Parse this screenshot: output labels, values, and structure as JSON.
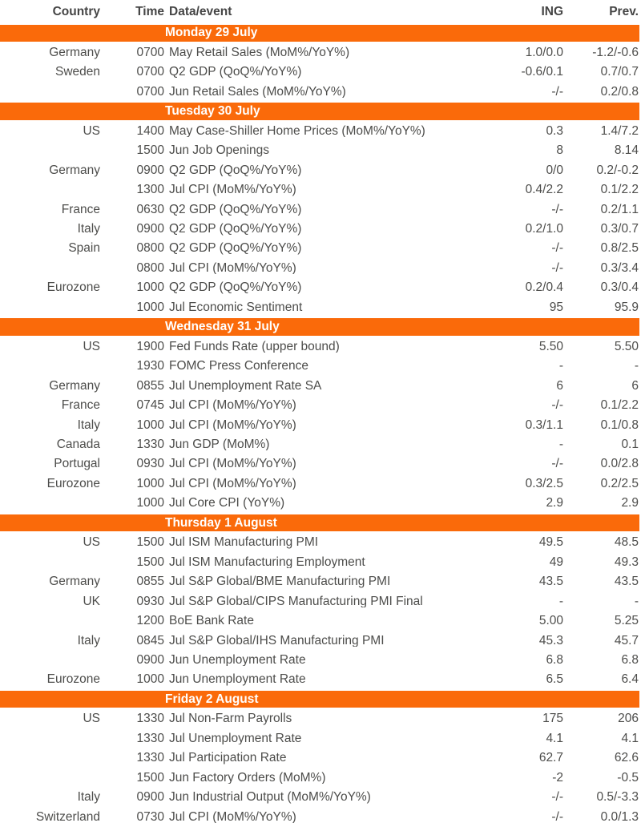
{
  "colors": {
    "accent": "#FA6A0A",
    "text": "#4D4D4B",
    "header_text": "#454545",
    "day_text": "#FFFFFF"
  },
  "chart_data": {
    "type": "table",
    "columns": [
      "Country",
      "Time",
      "Data/event",
      "ING",
      "Prev."
    ],
    "sections": [
      {
        "day": "Monday 29 July",
        "rows": [
          {
            "country": "Germany",
            "time": "0700",
            "event": "May Retail Sales (MoM%/YoY%)",
            "ing": "1.0/0.0",
            "prev": "-1.2/-0.6"
          },
          {
            "country": "Sweden",
            "time": "0700",
            "event": "Q2 GDP (QoQ%/YoY%)",
            "ing": "-0.6/0.1",
            "prev": "0.7/0.7"
          },
          {
            "country": "",
            "time": "0700",
            "event": "Jun Retail Sales (MoM%/YoY%)",
            "ing": "-/-",
            "prev": "0.2/0.8"
          }
        ]
      },
      {
        "day": "Tuesday 30 July",
        "rows": [
          {
            "country": "US",
            "time": "1400",
            "event": "May Case-Shiller Home Prices (MoM%/YoY%)",
            "ing": "0.3",
            "prev": "1.4/7.2"
          },
          {
            "country": "",
            "time": "1500",
            "event": "Jun Job Openings",
            "ing": "8",
            "prev": "8.14"
          },
          {
            "country": "Germany",
            "time": "0900",
            "event": "Q2 GDP (QoQ%/YoY%)",
            "ing": "0/0",
            "prev": "0.2/-0.2"
          },
          {
            "country": "",
            "time": "1300",
            "event": "Jul CPI (MoM%/YoY%)",
            "ing": "0.4/2.2",
            "prev": "0.1/2.2"
          },
          {
            "country": "France",
            "time": "0630",
            "event": "Q2 GDP (QoQ%/YoY%)",
            "ing": "-/-",
            "prev": "0.2/1.1"
          },
          {
            "country": "Italy",
            "time": "0900",
            "event": "Q2 GDP (QoQ%/YoY%)",
            "ing": "0.2/1.0",
            "prev": "0.3/0.7"
          },
          {
            "country": "Spain",
            "time": "0800",
            "event": "Q2 GDP (QoQ%/YoY%)",
            "ing": "-/-",
            "prev": "0.8/2.5"
          },
          {
            "country": "",
            "time": "0800",
            "event": "Jul CPI (MoM%/YoY%)",
            "ing": "-/-",
            "prev": "0.3/3.4"
          },
          {
            "country": "Eurozone",
            "time": "1000",
            "event": "Q2 GDP (QoQ%/YoY%)",
            "ing": "0.2/0.4",
            "prev": "0.3/0.4"
          },
          {
            "country": "",
            "time": "1000",
            "event": "Jul Economic Sentiment",
            "ing": "95",
            "prev": "95.9"
          }
        ]
      },
      {
        "day": "Wednesday 31 July",
        "rows": [
          {
            "country": "US",
            "time": "1900",
            "event": "Fed Funds Rate (upper bound)",
            "ing": "5.50",
            "prev": "5.50"
          },
          {
            "country": "",
            "time": "1930",
            "event": "FOMC Press Conference",
            "ing": "-",
            "prev": "-"
          },
          {
            "country": "Germany",
            "time": "0855",
            "event": "Jul Unemployment Rate SA",
            "ing": "6",
            "prev": "6"
          },
          {
            "country": "France",
            "time": "0745",
            "event": "Jul CPI (MoM%/YoY%)",
            "ing": "-/-",
            "prev": "0.1/2.2"
          },
          {
            "country": "Italy",
            "time": "1000",
            "event": "Jul CPI (MoM%/YoY%)",
            "ing": "0.3/1.1",
            "prev": "0.1/0.8"
          },
          {
            "country": "Canada",
            "time": "1330",
            "event": "Jun GDP (MoM%)",
            "ing": "-",
            "prev": "0.1"
          },
          {
            "country": "Portugal",
            "time": "0930",
            "event": "Jul CPI (MoM%/YoY%)",
            "ing": "-/-",
            "prev": "0.0/2.8"
          },
          {
            "country": "Eurozone",
            "time": "1000",
            "event": "Jul CPI (MoM%/YoY%)",
            "ing": "0.3/2.5",
            "prev": "0.2/2.5"
          },
          {
            "country": "",
            "time": "1000",
            "event": "Jul Core CPI (YoY%)",
            "ing": "2.9",
            "prev": "2.9"
          }
        ]
      },
      {
        "day": "Thursday 1 August",
        "rows": [
          {
            "country": "US",
            "time": "1500",
            "event": "Jul ISM Manufacturing PMI",
            "ing": "49.5",
            "prev": "48.5"
          },
          {
            "country": "",
            "time": "1500",
            "event": "Jul ISM Manufacturing Employment",
            "ing": "49",
            "prev": "49.3"
          },
          {
            "country": "Germany",
            "time": "0855",
            "event": "Jul S&P Global/BME Manufacturing PMI",
            "ing": "43.5",
            "prev": "43.5"
          },
          {
            "country": "UK",
            "time": "0930",
            "event": "Jul S&P Global/CIPS Manufacturing PMI Final",
            "ing": "-",
            "prev": "-"
          },
          {
            "country": "",
            "time": "1200",
            "event": "BoE Bank Rate",
            "ing": "5.00",
            "prev": "5.25"
          },
          {
            "country": "Italy",
            "time": "0845",
            "event": "Jul S&P Global/IHS Manufacturing PMI",
            "ing": "45.3",
            "prev": "45.7"
          },
          {
            "country": "",
            "time": "0900",
            "event": "Jun Unemployment Rate",
            "ing": "6.8",
            "prev": "6.8"
          },
          {
            "country": "Eurozone",
            "time": "1000",
            "event": "Jun Unemployment Rate",
            "ing": "6.5",
            "prev": "6.4"
          }
        ]
      },
      {
        "day": "Friday 2 August",
        "rows": [
          {
            "country": "US",
            "time": "1330",
            "event": "Jul Non-Farm Payrolls",
            "ing": "175",
            "prev": "206"
          },
          {
            "country": "",
            "time": "1330",
            "event": "Jul Unemployment Rate",
            "ing": "4.1",
            "prev": "4.1"
          },
          {
            "country": "",
            "time": "1330",
            "event": "Jul Participation Rate",
            "ing": "62.7",
            "prev": "62.6"
          },
          {
            "country": "",
            "time": "1500",
            "event": "Jun Factory Orders (MoM%)",
            "ing": "-2",
            "prev": "-0.5"
          },
          {
            "country": "Italy",
            "time": "0900",
            "event": "Jun Industrial Output (MoM%/YoY%)",
            "ing": "-/-",
            "prev": "0.5/-3.3"
          },
          {
            "country": "Switzerland",
            "time": "0730",
            "event": "Jul CPI (MoM%/YoY%)",
            "ing": "-/-",
            "prev": "0.0/1.3"
          }
        ]
      }
    ]
  }
}
